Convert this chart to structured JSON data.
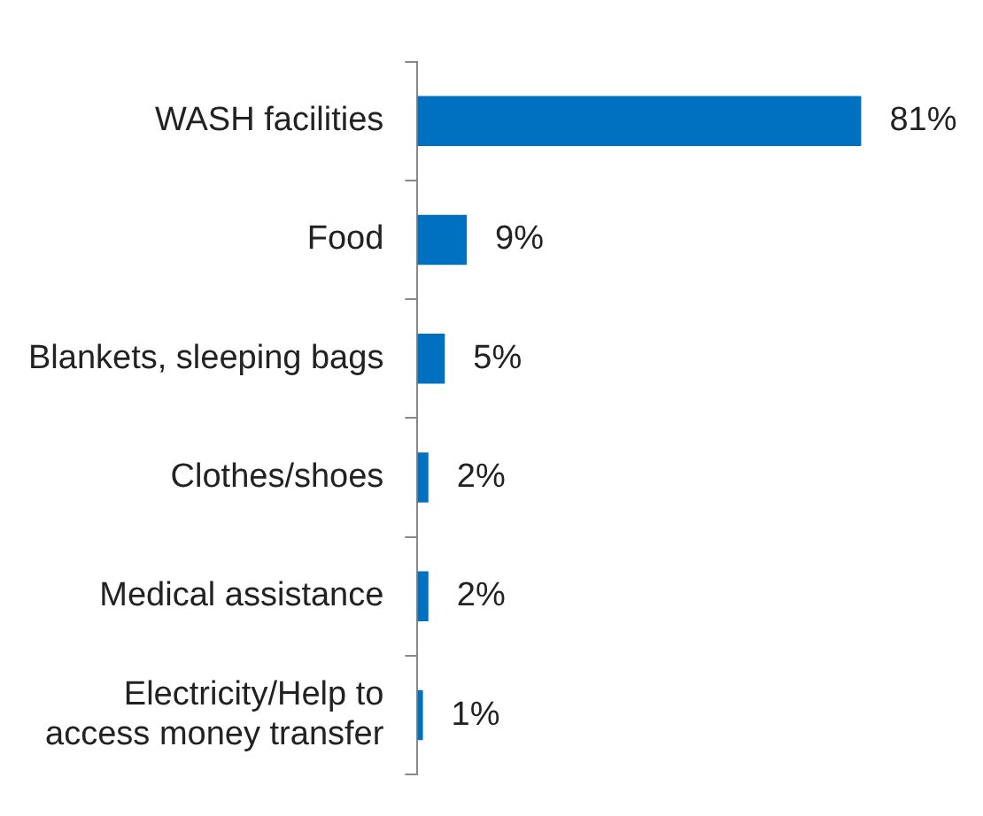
{
  "chart_data": {
    "type": "bar",
    "orientation": "horizontal",
    "categories": [
      "WASH facilities",
      "Food",
      "Blankets, sleeping bags",
      "Clothes/shoes",
      "Medical assistance",
      "Electricity/Help to access money transfer"
    ],
    "values": [
      81,
      9,
      5,
      2,
      2,
      1
    ],
    "value_labels": [
      "81%",
      "9%",
      "5%",
      "2%",
      "2%",
      "1%"
    ],
    "color": "#0070c0",
    "tick_labels": "y"
  }
}
